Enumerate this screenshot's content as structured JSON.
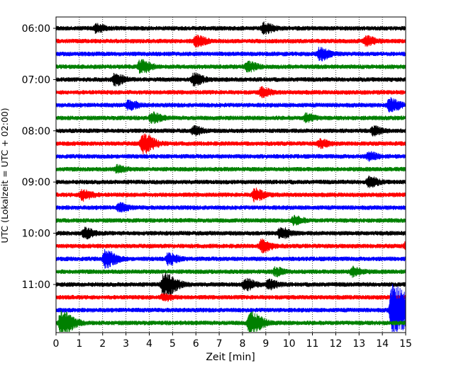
{
  "chart_data": {
    "type": "line",
    "subtype": "helicorder",
    "title": "",
    "xlabel": "Zeit  [min]",
    "ylabel": "UTC (Lokalzeit = UTC + 02:00)",
    "xlim": [
      0,
      15
    ],
    "x_ticks": [
      "0",
      "1",
      "2",
      "3",
      "4",
      "5",
      "6",
      "7",
      "8",
      "9",
      "10",
      "11",
      "12",
      "13",
      "14",
      "15"
    ],
    "y_tick_labels": [
      "06:00",
      "07:00",
      "08:00",
      "09:00",
      "10:00",
      "11:00"
    ],
    "grid": {
      "vertical_minutes": true,
      "style": "dotted"
    },
    "trace_colors": [
      "#000000",
      "#ff0000",
      "#0000ff",
      "#008000"
    ],
    "line_start_times": [
      "06:00",
      "06:15",
      "06:30",
      "06:45",
      "07:00",
      "07:15",
      "07:30",
      "07:45",
      "08:00",
      "08:15",
      "08:30",
      "08:45",
      "09:00",
      "09:15",
      "09:30",
      "09:45",
      "10:00",
      "10:15",
      "10:30",
      "10:45",
      "11:00",
      "11:15",
      "11:30",
      "11:45"
    ],
    "events": [
      {
        "line": 0,
        "minute": 1.7,
        "amplitude": 0.35
      },
      {
        "line": 0,
        "minute": 8.9,
        "amplitude": 0.5
      },
      {
        "line": 1,
        "minute": 6.0,
        "amplitude": 0.5
      },
      {
        "line": 1,
        "minute": 13.3,
        "amplitude": 0.4
      },
      {
        "line": 2,
        "minute": 11.3,
        "amplitude": 0.55
      },
      {
        "line": 3,
        "minute": 3.6,
        "amplitude": 0.6
      },
      {
        "line": 3,
        "minute": 8.2,
        "amplitude": 0.45
      },
      {
        "line": 4,
        "minute": 2.5,
        "amplitude": 0.5
      },
      {
        "line": 4,
        "minute": 5.9,
        "amplitude": 0.5
      },
      {
        "line": 5,
        "minute": 8.8,
        "amplitude": 0.4
      },
      {
        "line": 6,
        "minute": 3.1,
        "amplitude": 0.4
      },
      {
        "line": 6,
        "minute": 14.3,
        "amplitude": 0.6
      },
      {
        "line": 7,
        "minute": 4.1,
        "amplitude": 0.45
      },
      {
        "line": 7,
        "minute": 10.7,
        "amplitude": 0.35
      },
      {
        "line": 8,
        "minute": 5.9,
        "amplitude": 0.35
      },
      {
        "line": 8,
        "minute": 13.6,
        "amplitude": 0.35
      },
      {
        "line": 9,
        "minute": 3.7,
        "amplitude": 0.9
      },
      {
        "line": 9,
        "minute": 11.3,
        "amplitude": 0.35
      },
      {
        "line": 10,
        "minute": 13.4,
        "amplitude": 0.35
      },
      {
        "line": 11,
        "minute": 2.6,
        "amplitude": 0.3
      },
      {
        "line": 12,
        "minute": 13.4,
        "amplitude": 0.45
      },
      {
        "line": 13,
        "minute": 1.1,
        "amplitude": 0.5
      },
      {
        "line": 13,
        "minute": 8.5,
        "amplitude": 0.55
      },
      {
        "line": 14,
        "minute": 2.7,
        "amplitude": 0.35
      },
      {
        "line": 15,
        "minute": 10.2,
        "amplitude": 0.35
      },
      {
        "line": 16,
        "minute": 1.2,
        "amplitude": 0.45
      },
      {
        "line": 16,
        "minute": 9.6,
        "amplitude": 0.5
      },
      {
        "line": 17,
        "minute": 8.8,
        "amplitude": 0.55
      },
      {
        "line": 17,
        "minute": 15.0,
        "amplitude": 0.35
      },
      {
        "line": 18,
        "minute": 2.1,
        "amplitude": 0.8
      },
      {
        "line": 18,
        "minute": 4.8,
        "amplitude": 0.5
      },
      {
        "line": 19,
        "minute": 9.4,
        "amplitude": 0.35
      },
      {
        "line": 19,
        "minute": 12.7,
        "amplitude": 0.4
      },
      {
        "line": 20,
        "minute": 4.6,
        "amplitude": 1.1
      },
      {
        "line": 20,
        "minute": 8.1,
        "amplitude": 0.5
      },
      {
        "line": 20,
        "minute": 9.1,
        "amplitude": 0.4
      },
      {
        "line": 21,
        "minute": 4.6,
        "amplitude": 0.3
      },
      {
        "line": 22,
        "minute": 14.4,
        "amplitude": 2.4
      },
      {
        "line": 23,
        "minute": 0.2,
        "amplitude": 1.1
      },
      {
        "line": 23,
        "minute": 8.3,
        "amplitude": 1.0
      }
    ]
  }
}
